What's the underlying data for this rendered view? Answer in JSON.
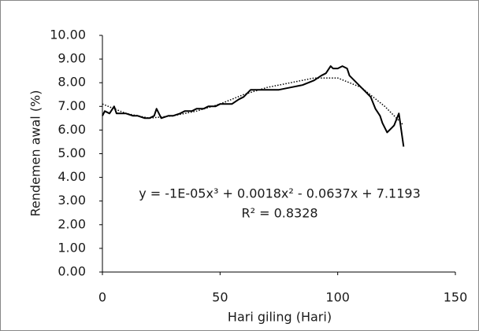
{
  "chart_data": {
    "type": "line",
    "xlabel": "Hari giling (Hari)",
    "ylabel": "Rendemen awal (%)",
    "annotations": [
      "y = -1E-05x³ + 0.0018x² - 0.0637x + 7.1193",
      "R² = 0.8328"
    ],
    "series": [
      {
        "color": "#000000",
        "x": [
          0,
          1,
          3,
          5,
          6,
          8,
          10,
          13,
          15,
          18,
          20,
          22,
          23,
          25,
          28,
          30,
          33,
          35,
          38,
          40,
          43,
          45,
          48,
          50,
          53,
          55,
          58,
          60,
          63,
          66,
          70,
          75,
          80,
          85,
          90,
          93,
          95,
          97,
          98,
          100,
          102,
          104,
          105,
          107,
          110,
          112,
          114,
          116,
          118,
          119,
          121,
          123,
          124,
          126,
          127,
          128
        ],
        "values": [
          6.6,
          6.8,
          6.7,
          7.0,
          6.7,
          6.7,
          6.7,
          6.6,
          6.6,
          6.5,
          6.5,
          6.6,
          6.9,
          6.5,
          6.6,
          6.6,
          6.7,
          6.8,
          6.8,
          6.9,
          6.9,
          7.0,
          7.0,
          7.1,
          7.1,
          7.1,
          7.3,
          7.4,
          7.7,
          7.7,
          7.7,
          7.7,
          7.8,
          7.9,
          8.1,
          8.3,
          8.4,
          8.7,
          8.6,
          8.6,
          8.7,
          8.6,
          8.3,
          8.1,
          7.8,
          7.6,
          7.4,
          6.9,
          6.6,
          6.3,
          5.9,
          6.1,
          6.2,
          6.7,
          6.0,
          5.3
        ]
      },
      {
        "color": "#000000",
        "dash": true,
        "x": [
          0,
          10,
          20,
          30,
          40,
          50,
          60,
          70,
          80,
          90,
          100,
          110,
          120,
          128
        ],
        "values": [
          7.1,
          6.7,
          6.5,
          6.6,
          6.8,
          7.1,
          7.5,
          7.8,
          8.0,
          8.2,
          8.2,
          7.8,
          7.0,
          6.2
        ]
      }
    ],
    "xlim": [
      0,
      150
    ],
    "xticks": [
      0,
      50,
      100,
      150
    ],
    "ylim": [
      0,
      10
    ],
    "yticks": [
      {
        "value": 0,
        "label": "0.00"
      },
      {
        "value": 1,
        "label": "1.00"
      },
      {
        "value": 2,
        "label": "2.00"
      },
      {
        "value": 3,
        "label": "3.00"
      },
      {
        "value": 4,
        "label": "4.00"
      },
      {
        "value": 5,
        "label": "5.00"
      },
      {
        "value": 6,
        "label": "6.00"
      },
      {
        "value": 7,
        "label": "7.00"
      },
      {
        "value": 8,
        "label": "8.00"
      },
      {
        "value": 9,
        "label": "9.00"
      },
      {
        "value": 10,
        "label": "10.00"
      }
    ],
    "grid": false
  }
}
